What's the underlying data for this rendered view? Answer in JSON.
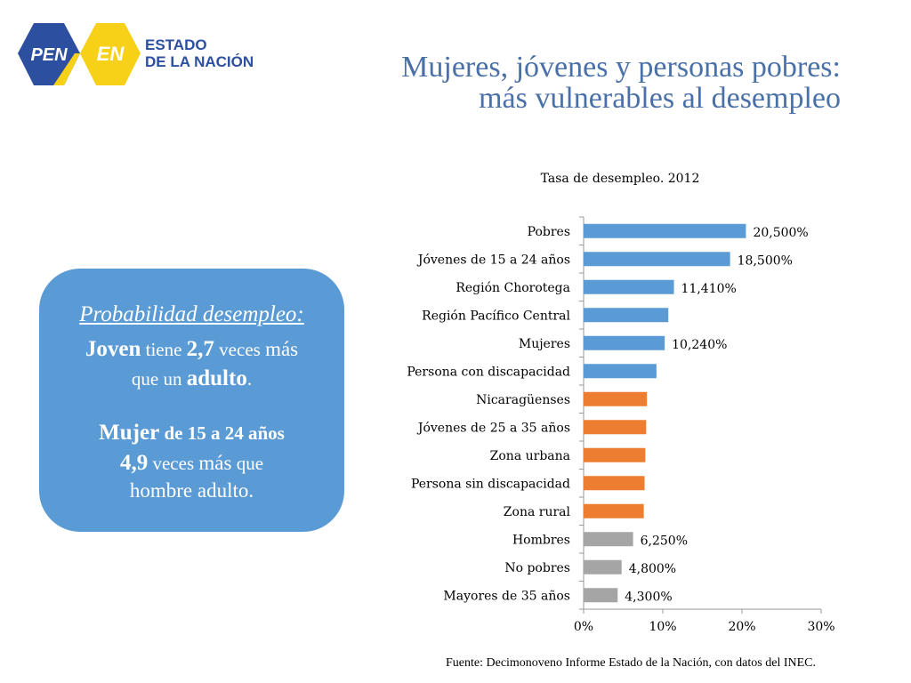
{
  "header": {
    "title_line1": "Mujeres, jóvenes y personas pobres:",
    "title_line2": "más vulnerables al desempleo",
    "logo_text_pen": "PEN",
    "logo_text_en": "EN",
    "logo_text_line1": "ESTADO",
    "logo_text_line2": "DE LA NACIÓN"
  },
  "callout": {
    "heading": "Probabilidad desempleo:",
    "line1_a": "Joven",
    "line1_b": " tiene ",
    "line1_c": "2,7",
    "line1_d": " veces ",
    "line1_e": "más",
    "line2_a": "que un ",
    "line2_b": "adulto",
    "line2_c": ".",
    "line3_a": "Mujer",
    "line3_b": " de 15 a 24 años",
    "line4_a": "4,9",
    "line4_b": " veces ",
    "line4_c": "más",
    "line4_d": " que",
    "line5": "hombre adulto."
  },
  "colors": {
    "title": "#4a70a8",
    "callout_bg": "#5b9bd5",
    "bar_blue": "#5b9bd5",
    "bar_orange": "#ed7d31",
    "bar_gray": "#a5a5a5",
    "logo_navy": "#2d4fa0",
    "logo_yellow": "#f7d117"
  },
  "chart_data": {
    "type": "bar",
    "orientation": "horizontal",
    "title": "Tasa de desempleo. 2012",
    "xlim": [
      0,
      30
    ],
    "x_ticks": [
      0,
      10,
      20,
      30
    ],
    "x_tick_labels": [
      "0%",
      "10%",
      "20%",
      "30%"
    ],
    "grid": false,
    "categories": [
      "Pobres",
      "Jóvenes de 15 a 24 años",
      "Región Chorotega",
      "Región Pacífico Central",
      "Mujeres",
      "Persona con discapacidad",
      "Nicaragüenses",
      "Jóvenes de 25 a 35 años",
      "Zona urbana",
      "Persona sin discapacidad",
      "Zona rural",
      "Hombres",
      "No pobres",
      "Mayores de 35 años"
    ],
    "values": [
      20.5,
      18.5,
      11.41,
      10.7,
      10.24,
      9.2,
      8.0,
      7.9,
      7.8,
      7.7,
      7.6,
      6.25,
      4.8,
      4.3
    ],
    "data_labels": [
      "20,500%",
      "18,500%",
      "11,410%",
      "",
      "10,240%",
      "",
      "",
      "",
      "",
      "",
      "",
      "6,250%",
      "4,800%",
      "4,300%"
    ],
    "bar_colors": [
      "blue",
      "blue",
      "blue",
      "blue",
      "blue",
      "blue",
      "orange",
      "orange",
      "orange",
      "orange",
      "orange",
      "gray",
      "gray",
      "gray"
    ]
  },
  "footer": {
    "source": "Fuente: Decimonoveno Informe Estado de la Nación, con datos del INEC."
  }
}
